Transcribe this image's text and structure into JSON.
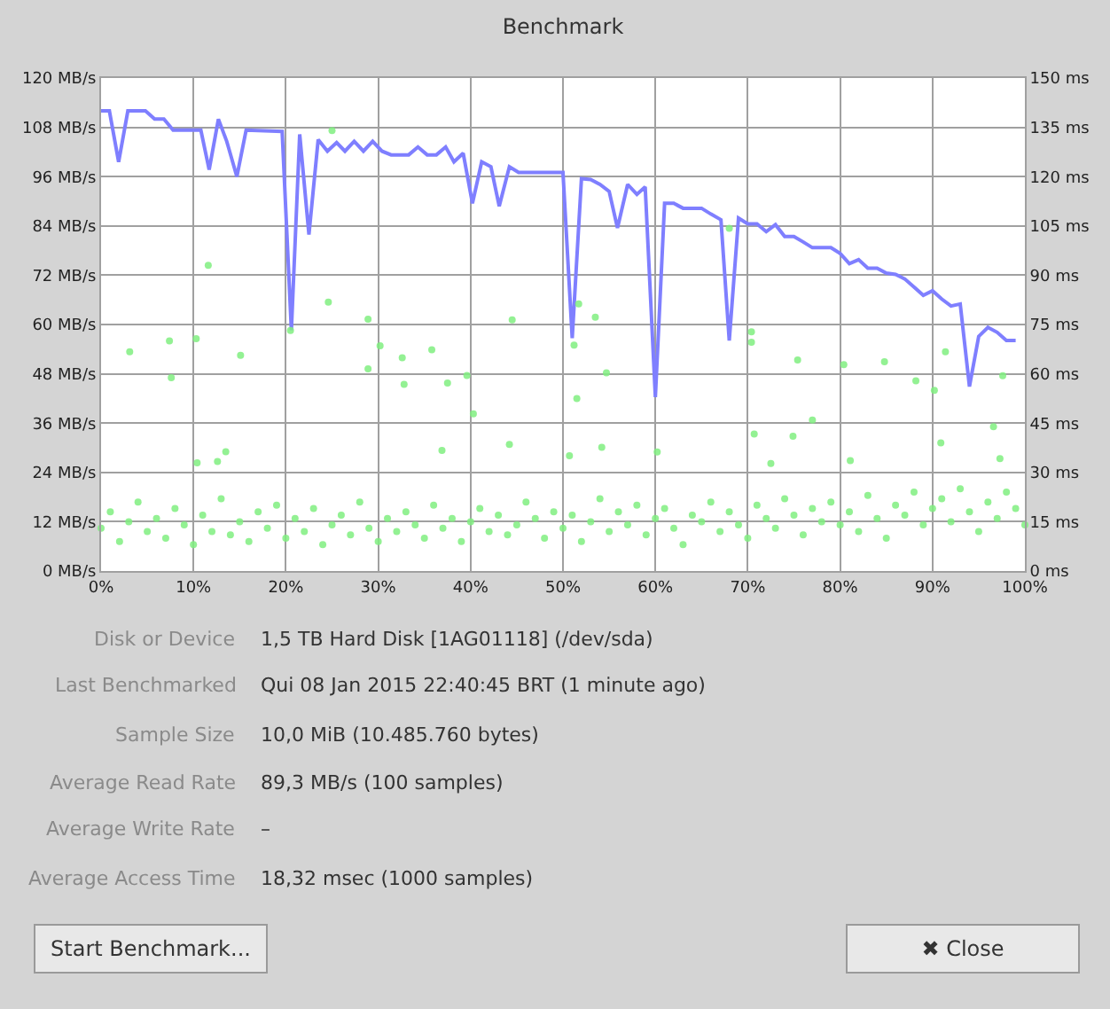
{
  "chart_data": {
    "type": "line",
    "title": "Benchmark",
    "xlim": [
      0,
      100
    ],
    "xticks": [
      {
        "value": 0,
        "label": "0%"
      },
      {
        "value": 10,
        "label": "10%"
      },
      {
        "value": 20,
        "label": "20%"
      },
      {
        "value": 30,
        "label": "30%"
      },
      {
        "value": 40,
        "label": "40%"
      },
      {
        "value": 50,
        "label": "50%"
      },
      {
        "value": 60,
        "label": "60%"
      },
      {
        "value": 70,
        "label": "70%"
      },
      {
        "value": 80,
        "label": "80%"
      },
      {
        "value": 90,
        "label": "90%"
      },
      {
        "value": 100,
        "label": "100%"
      }
    ],
    "ylim": [
      0,
      120
    ],
    "yticks": [
      {
        "value": 0,
        "label": "0 MB/s"
      },
      {
        "value": 12,
        "label": "12 MB/s"
      },
      {
        "value": 24,
        "label": "24 MB/s"
      },
      {
        "value": 36,
        "label": "36 MB/s"
      },
      {
        "value": 48,
        "label": "48 MB/s"
      },
      {
        "value": 60,
        "label": "60 MB/s"
      },
      {
        "value": 72,
        "label": "72 MB/s"
      },
      {
        "value": 84,
        "label": "84 MB/s"
      },
      {
        "value": 96,
        "label": "96 MB/s"
      },
      {
        "value": 108,
        "label": "108 MB/s"
      },
      {
        "value": 120,
        "label": "120 MB/s"
      }
    ],
    "y2lim": [
      0,
      150
    ],
    "y2ticks": [
      {
        "value": 0,
        "label": "0 ms"
      },
      {
        "value": 15,
        "label": "15 ms"
      },
      {
        "value": 30,
        "label": "30 ms"
      },
      {
        "value": 45,
        "label": "45 ms"
      },
      {
        "value": 60,
        "label": "60 ms"
      },
      {
        "value": 75,
        "label": "75 ms"
      },
      {
        "value": 90,
        "label": "90 ms"
      },
      {
        "value": 105,
        "label": "105 ms"
      },
      {
        "value": 120,
        "label": "120 ms"
      },
      {
        "value": 135,
        "label": "135 ms"
      },
      {
        "value": 150,
        "label": "150 ms"
      }
    ],
    "grid": true,
    "series": [
      {
        "type": "scatter",
        "axis": "y2",
        "marker": "circle",
        "color": "#80ee80",
        "x": [
          0,
          1,
          2,
          3,
          4,
          5,
          6,
          7,
          8,
          9,
          10,
          11,
          12,
          13,
          14,
          15,
          16,
          17,
          18,
          19,
          20,
          21,
          22,
          23,
          24,
          25,
          26,
          27,
          28,
          29,
          30,
          31,
          32,
          33,
          34,
          35,
          36,
          37,
          38,
          39,
          40,
          41,
          42,
          43,
          44,
          45,
          46,
          47,
          48,
          49,
          50,
          51,
          52,
          53,
          54,
          55,
          56,
          57,
          58,
          59,
          60,
          61,
          62,
          63,
          64,
          65,
          66,
          67,
          68,
          69,
          70,
          71,
          72,
          73,
          74,
          75,
          76,
          77,
          78,
          79,
          80,
          81,
          82,
          83,
          84,
          85,
          86,
          87,
          88,
          89,
          90,
          91,
          92,
          93,
          94,
          95,
          96,
          97,
          98,
          99,
          100,
          11.6,
          7.4,
          3.1,
          10.3,
          15.1,
          24.6,
          20.5,
          28.9,
          28.9,
          30.2,
          32.6,
          35.8,
          44.5,
          39.6,
          40.3,
          37.5,
          32.8,
          25,
          7.6,
          13.5,
          12.6,
          10.4,
          44.2,
          36.9,
          51.7,
          53.5,
          51.2,
          54.7,
          51.5,
          50.7,
          54.2,
          60.2,
          68,
          70.4,
          70.4,
          75.4,
          80.4,
          84.8,
          91.4,
          88.2,
          90.2,
          97.6,
          96.6,
          77,
          74.9,
          70.7,
          90.9,
          97.3,
          81.1,
          72.5
        ],
        "values": [
          13,
          18,
          9,
          15,
          21,
          12,
          16,
          10,
          19,
          14,
          8,
          17,
          12,
          22,
          11,
          15,
          9,
          18,
          13,
          20,
          10,
          16,
          12,
          19,
          8,
          14,
          17,
          11,
          21,
          13,
          9,
          16,
          12,
          18,
          14,
          10,
          20,
          13,
          16,
          9,
          15,
          19,
          12,
          17,
          11,
          14,
          21,
          16,
          10,
          18,
          13,
          17,
          9,
          15,
          22,
          12,
          18,
          14,
          20,
          11,
          16,
          19,
          13,
          8,
          17,
          15,
          21,
          12,
          18,
          14,
          10,
          20,
          16,
          13,
          22,
          17,
          11,
          19,
          15,
          21,
          14,
          18,
          12,
          23,
          16,
          10,
          20,
          17,
          24,
          14,
          19,
          22,
          15,
          25,
          18,
          12,
          21,
          16,
          24,
          19,
          14,
          93,
          70,
          66.7,
          70.7,
          65.6,
          81.8,
          73.2,
          76.6,
          61.5,
          68.5,
          64.9,
          67.3,
          76.4,
          59.5,
          47.8,
          57.2,
          56.8,
          134,
          58.8,
          36.3,
          33.3,
          32.9,
          38.5,
          36.7,
          81.3,
          77.2,
          68.7,
          60.3,
          52.5,
          35.1,
          37.6,
          36.2,
          104.3,
          72.8,
          69.6,
          64.2,
          62.8,
          63.7,
          66.7,
          57.9,
          55,
          59.4,
          43.9,
          45.9,
          41,
          41.7,
          39,
          34.2,
          33.6,
          32.7
        ]
      },
      {
        "color": "#7f7fff",
        "marker": "none",
        "x": [
          0,
          0.9,
          1.9,
          2.9,
          4.8,
          5.8,
          6.8,
          7.8,
          10.8,
          11.7,
          12.7,
          13.6,
          14.7,
          15.7,
          19.6,
          20.6,
          21.5,
          22.5,
          23.5,
          24.5,
          25.5,
          26.4,
          27.4,
          28.4,
          29.4,
          30.4,
          31.4,
          33.3,
          34.3,
          35.3,
          36.3,
          37.3,
          38.2,
          39.2,
          40.2,
          41.2,
          42.2,
          43.1,
          44.2,
          45.2,
          49.1,
          50,
          51,
          52,
          53,
          54,
          55,
          55.9,
          57,
          58,
          58.9,
          60,
          61,
          62,
          63,
          65,
          66,
          67.1,
          68,
          69,
          70,
          71,
          72,
          73,
          74,
          75,
          76,
          77,
          79,
          80,
          81,
          82,
          83,
          84,
          85,
          86,
          87,
          88,
          89,
          90,
          91,
          92,
          93,
          94,
          95,
          96,
          97,
          98,
          99
        ],
        "values": [
          112,
          112,
          99.6,
          112,
          112,
          110,
          110,
          107.3,
          107.3,
          97.7,
          110,
          104.6,
          96,
          107.3,
          107,
          58.6,
          106.3,
          81.9,
          105,
          102.2,
          104.3,
          102.2,
          104.6,
          102.2,
          104.6,
          102.2,
          101.3,
          101.3,
          103.2,
          101.3,
          101.3,
          103.2,
          99.6,
          101.7,
          89.5,
          99.6,
          98.4,
          88.8,
          98.4,
          97,
          97,
          97,
          56.7,
          95.5,
          95.3,
          94.1,
          92.4,
          83.5,
          94.1,
          91.7,
          93.5,
          42.3,
          89.5,
          89.5,
          88.3,
          88.3,
          86.9,
          85.5,
          56.1,
          85.9,
          84.5,
          84.5,
          82.6,
          84.3,
          81.4,
          81.4,
          80.1,
          78.7,
          78.7,
          77.3,
          74.8,
          75.8,
          73.7,
          73.7,
          72.5,
          72.2,
          71.1,
          69.1,
          67.1,
          68.2,
          66.2,
          64.5,
          65,
          44.9,
          57.1,
          59.3,
          58.1,
          56.1,
          56.1
        ]
      }
    ],
    "annotations": [
      "Disk or Device",
      "1,5 TB Hard Disk [1AG01118] (/dev/sda)",
      "Last Benchmarked",
      "Qui 08 Jan 2015 22:40:45 BRT (1 minute ago)",
      "Sample Size",
      "10,0 MiB (10.485.760 bytes)",
      "Average Read Rate",
      "89,3 MB/s (100 samples)",
      "Average Write Rate",
      "–",
      "Average Access Time",
      "18,32 msec (1000 samples)",
      "Start Benchmark...",
      "✖ Close"
    ]
  }
}
